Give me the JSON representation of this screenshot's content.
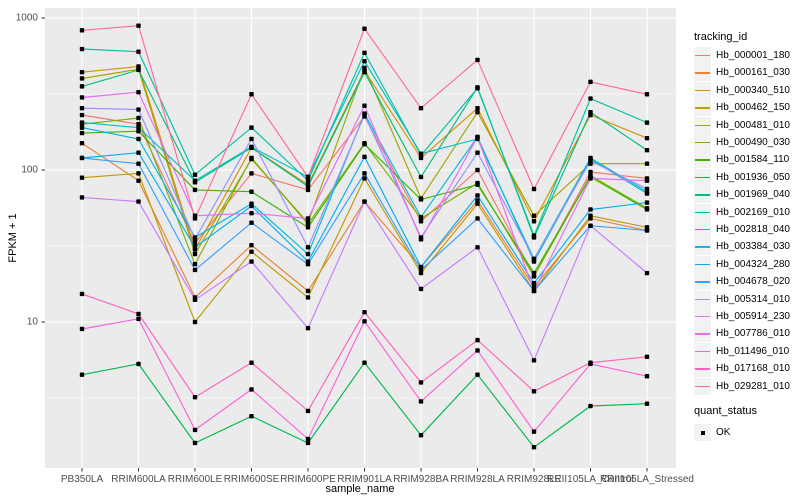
{
  "figure": {
    "background": "#FFFFFF",
    "panel_background": "#EBEBEB",
    "grid_color": "#FFFFFF",
    "tick_color": "#333333",
    "tick_label_color": "#4D4D4D",
    "point_color": "#000000"
  },
  "legend": {
    "tracking_title": "tracking_id",
    "quant_title": "quant_status",
    "quant_items": [
      {
        "label": "OK",
        "marker": "black-square"
      }
    ]
  },
  "chart_data": {
    "type": "line",
    "title": "",
    "xlabel": "sample_name",
    "ylabel": "FPKM + 1",
    "y_scale": "log10",
    "y_ticks": [
      1000,
      100,
      10
    ],
    "y_minor_gridlines": [
      316.2,
      31.62,
      3.162
    ],
    "ylim_log10": [
      0.05,
      3.07
    ],
    "grid": true,
    "legend_position": "right",
    "point_marker": "small black square (quant_status OK)",
    "x_categories": [
      "PB350LA",
      "RRIM600LA",
      "RRIM600LE",
      "RRIM600SE",
      "RRIM600PE",
      "RRIM901LA",
      "RRIM928BA",
      "RRIM928LA",
      "RRIM928LE",
      "RRII105LA_Control",
      "RRII105LA_Stressed"
    ],
    "series": [
      {
        "name": "Hb_000001_180",
        "color": "#F8766D",
        "values": [
          230,
          200,
          33,
          95,
          74,
          225,
          46,
          100,
          20,
          97,
          88
        ]
      },
      {
        "name": "Hb_000161_030",
        "color": "#EA8331",
        "values": [
          150,
          85,
          14.5,
          32,
          16,
          62,
          23,
          63,
          17,
          48,
          40
        ]
      },
      {
        "name": "Hb_000340_510",
        "color": "#D89000",
        "values": [
          440,
          480,
          30,
          140,
          80,
          450,
          120,
          255,
          46,
          230,
          162
        ]
      },
      {
        "name": "Hb_000462_150",
        "color": "#C09B00",
        "values": [
          89,
          95,
          10,
          29,
          14.5,
          88,
          21,
          60,
          16,
          50,
          42
        ]
      },
      {
        "name": "Hb_000481_010",
        "color": "#A3A500",
        "values": [
          400,
          460,
          28,
          118,
          45,
          470,
          65,
          240,
          50,
          110,
          110
        ]
      },
      {
        "name": "Hb_000490_030",
        "color": "#7CAE00",
        "values": [
          200,
          220,
          24,
          120,
          44,
          150,
          48,
          82,
          20,
          92,
          56
        ]
      },
      {
        "name": "Hb_001584_110",
        "color": "#39B600",
        "values": [
          175,
          180,
          74,
          72,
          42,
          148,
          64,
          80,
          21,
          90,
          55
        ]
      },
      {
        "name": "Hb_001936_050",
        "color": "#00BB4E",
        "values": [
          4.5,
          5.3,
          1.6,
          2.4,
          1.6,
          5.4,
          1.8,
          4.5,
          1.5,
          2.8,
          2.9
        ]
      },
      {
        "name": "Hb_001969_040",
        "color": "#00BF7D",
        "values": [
          355,
          455,
          83,
          140,
          78,
          440,
          90,
          350,
          36,
          240,
          135
        ]
      },
      {
        "name": "Hb_002169_010",
        "color": "#00C1A3",
        "values": [
          625,
          600,
          93,
          190,
          85,
          590,
          125,
          345,
          37,
          295,
          205
        ]
      },
      {
        "name": "Hb_002818_040",
        "color": "#00BFC4",
        "values": [
          205,
          190,
          85,
          142,
          90,
          520,
          128,
          160,
          26,
          120,
          72
        ]
      },
      {
        "name": "Hb_003384_030",
        "color": "#00BAE0",
        "values": [
          190,
          160,
          36,
          60,
          28,
          235,
          49,
          165,
          25,
          118,
          70
        ]
      },
      {
        "name": "Hb_004324_280",
        "color": "#00B0F6",
        "values": [
          120,
          130,
          31,
          58,
          25,
          122,
          23,
          68,
          18,
          55,
          61
        ]
      },
      {
        "name": "Hb_004678_020",
        "color": "#35A2FF",
        "values": [
          120,
          110,
          22,
          45,
          24,
          95,
          22,
          48,
          16,
          43,
          40
        ]
      },
      {
        "name": "Hb_005314_010",
        "color": "#9590FF",
        "values": [
          255,
          250,
          35,
          160,
          31,
          230,
          36,
          130,
          26,
          115,
          75
        ]
      },
      {
        "name": "Hb_005914_230",
        "color": "#C77CFF",
        "values": [
          66,
          62,
          14,
          25,
          9.1,
          62,
          16.5,
          31,
          5.6,
          43,
          21
        ]
      },
      {
        "name": "Hb_007786_010",
        "color": "#E76BF3",
        "values": [
          300,
          325,
          50,
          52,
          48,
          265,
          35,
          165,
          16,
          88,
          85
        ]
      },
      {
        "name": "Hb_011496_010",
        "color": "#FA62DB",
        "values": [
          9,
          10.5,
          1.95,
          3.6,
          1.7,
          10.1,
          3.0,
          6.5,
          1.9,
          5.3,
          4.4
        ]
      },
      {
        "name": "Hb_017168_010",
        "color": "#FF62BC",
        "values": [
          15.3,
          11.3,
          3.2,
          5.4,
          2.6,
          11.6,
          4.0,
          7.6,
          3.5,
          5.4,
          5.9
        ]
      },
      {
        "name": "Hb_029281_010",
        "color": "#FF6A98",
        "values": [
          830,
          890,
          48,
          315,
          90,
          850,
          255,
          530,
          75,
          380,
          315
        ]
      }
    ]
  }
}
